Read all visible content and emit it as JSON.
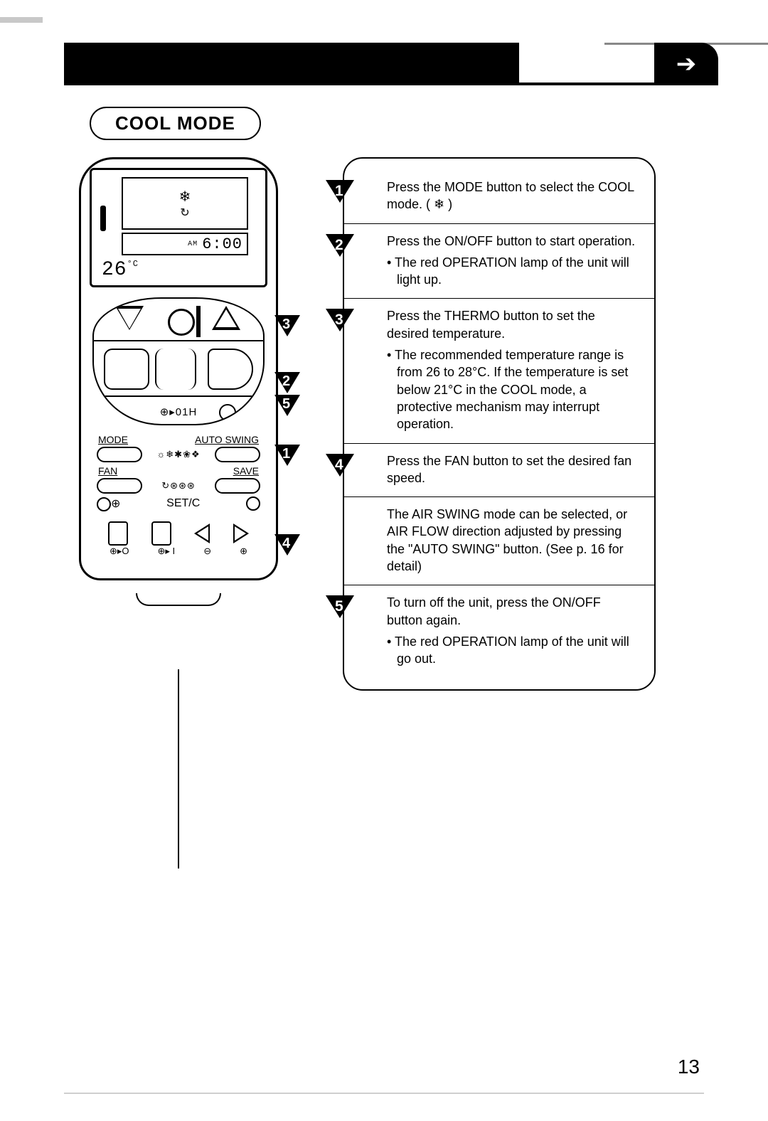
{
  "header": {
    "mode_title": "COOL MODE",
    "page_number": "13"
  },
  "lcd": {
    "cool_icon": "❄",
    "swing_icon": "↻",
    "time_ampm": "AM",
    "time_value": "6:00",
    "set_temp": "26",
    "temp_unit": "°C"
  },
  "remote": {
    "timer_label": "⊕▸01H",
    "label_mode": "MODE",
    "label_autoswing": "AUTO SWING",
    "label_fan": "FAN",
    "label_save": "SAVE",
    "label_setc": "SET/C",
    "mode_icons": "☼❄✱❀❖",
    "fan_icons": "↻⊛⊛⊛",
    "sym_o_o": "⊕▸O",
    "sym_o_i": "⊕▸ I",
    "sym_minus": "⊖",
    "sym_plus": "⊕"
  },
  "callouts_on_remote": {
    "c1": "1",
    "c2": "2",
    "c3": "3",
    "c4": "4",
    "c5": "5"
  },
  "steps": [
    {
      "num": "1",
      "text": "Press the MODE button to select the COOL mode. ( ❄ )",
      "bullets": []
    },
    {
      "num": "2",
      "text": "Press the ON/OFF button to start operation.",
      "bullets": [
        "The red OPERATION lamp of the unit will light up."
      ]
    },
    {
      "num": "3",
      "text": "Press the THERMO button to set the desired temperature.",
      "bullets": [
        "The recommended temperature range is from 26 to 28°C. If the temperature is set below 21°C in the COOL mode, a protective mechanism may interrupt operation."
      ]
    },
    {
      "num": "4",
      "text": "Press the FAN button to set the desired fan speed.",
      "bullets": []
    },
    {
      "num": "",
      "text": "The AIR SWING mode can be selected, or AIR FLOW direction adjusted by pressing the \"AUTO SWING\" button. (See p. 16 for detail)",
      "bullets": []
    },
    {
      "num": "5",
      "text": "To turn off the unit, press the ON/OFF button again.",
      "bullets": [
        "The red OPERATION lamp of the unit will go out."
      ]
    }
  ]
}
